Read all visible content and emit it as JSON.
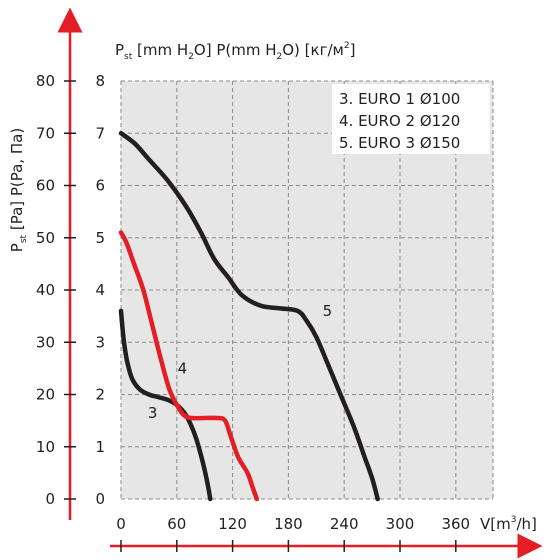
{
  "chart_data": {
    "type": "line",
    "y_title_outer": {
      "main": "P",
      "sub": "st",
      "rest": " [Pa] P(Pa, Па)"
    },
    "y_title_inner": {
      "p1": "P",
      "p1_sub": "st",
      "p2": " [mm H",
      "p2_sub": "2",
      "p3": "O] P(mm H",
      "p3_sub": "2",
      "p4": "O) [кг/м",
      "p4_sup": "2",
      "p5": "]"
    },
    "x_title": {
      "p1": "V[m",
      "p1_sup": "3",
      "p2": "/h]"
    },
    "x_ticks": [
      "0",
      "60",
      "120",
      "180",
      "240",
      "300",
      "360"
    ],
    "y_ticks_pa": [
      "0",
      "10",
      "20",
      "30",
      "40",
      "50",
      "60",
      "70",
      "80"
    ],
    "y_ticks_mm": [
      "0",
      "1",
      "2",
      "3",
      "4",
      "5",
      "6",
      "7",
      "8"
    ],
    "xlim": [
      0,
      400
    ],
    "ylim_pa": [
      0,
      80
    ],
    "ylim_mm": [
      0,
      8
    ],
    "grid": true,
    "legend_position": "top-right",
    "legend": [
      "3. EURO 1 Ø100",
      "4. EURO 2 Ø120",
      "5. EURO 3 Ø150"
    ],
    "series": [
      {
        "label": "3",
        "color": "#231f20",
        "points": [
          [
            0,
            36
          ],
          [
            2,
            32
          ],
          [
            4,
            29
          ],
          [
            7,
            26
          ],
          [
            12,
            23
          ],
          [
            20,
            21
          ],
          [
            30,
            20
          ],
          [
            40,
            19.5
          ],
          [
            50,
            19
          ],
          [
            60,
            18
          ],
          [
            70,
            16
          ],
          [
            80,
            12
          ],
          [
            88,
            7
          ],
          [
            93,
            3
          ],
          [
            96,
            0
          ]
        ]
      },
      {
        "label": "4",
        "color": "#e31e24",
        "points": [
          [
            0,
            51
          ],
          [
            6,
            49
          ],
          [
            14,
            45
          ],
          [
            24,
            40
          ],
          [
            34,
            33
          ],
          [
            44,
            26
          ],
          [
            52,
            21
          ],
          [
            60,
            18
          ],
          [
            68,
            16
          ],
          [
            76,
            15.5
          ],
          [
            90,
            15.5
          ],
          [
            104,
            15.5
          ],
          [
            112,
            15
          ],
          [
            118,
            12
          ],
          [
            126,
            8
          ],
          [
            136,
            5
          ],
          [
            142,
            2
          ],
          [
            146,
            0
          ]
        ]
      },
      {
        "label": "5",
        "color": "#231f20",
        "points": [
          [
            0,
            70
          ],
          [
            15,
            68
          ],
          [
            30,
            65
          ],
          [
            50,
            61
          ],
          [
            70,
            56
          ],
          [
            86,
            51
          ],
          [
            100,
            46
          ],
          [
            115,
            42.5
          ],
          [
            130,
            39
          ],
          [
            150,
            37
          ],
          [
            170,
            36.5
          ],
          [
            190,
            36
          ],
          [
            200,
            34
          ],
          [
            210,
            31
          ],
          [
            222,
            26
          ],
          [
            236,
            20
          ],
          [
            250,
            14
          ],
          [
            262,
            8
          ],
          [
            270,
            4
          ],
          [
            276,
            0
          ]
        ]
      }
    ],
    "series_label_positions": [
      {
        "label": "3",
        "x": 34,
        "y": 15.5
      },
      {
        "label": "4",
        "x": 66,
        "y": 24
      },
      {
        "label": "5",
        "x": 222,
        "y": 35
      }
    ]
  }
}
